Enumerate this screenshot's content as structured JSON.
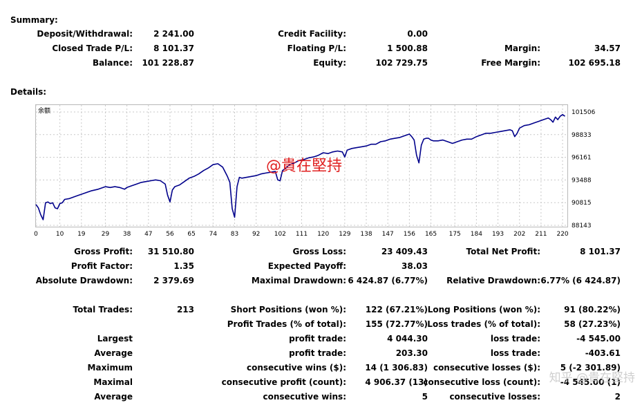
{
  "summary": {
    "title": "Summary:",
    "deposit_label": "Deposit/Withdrawal:",
    "deposit_value": "2 241.00",
    "credit_label": "Credit Facility:",
    "credit_value": "0.00",
    "closed_pl_label": "Closed Trade P/L:",
    "closed_pl_value": "8 101.37",
    "floating_label": "Floating P/L:",
    "floating_value": "1 500.88",
    "margin_label": "Margin:",
    "margin_value": "34.57",
    "balance_label": "Balance:",
    "balance_value": "101 228.87",
    "equity_label": "Equity:",
    "equity_value": "102 729.75",
    "free_margin_label": "Free Margin:",
    "free_margin_value": "102 695.18"
  },
  "details": {
    "title": "Details:"
  },
  "chart_data": {
    "type": "line",
    "title": "余额",
    "xlabel": "",
    "ylabel": "",
    "x_ticks": [
      "0",
      "10",
      "19",
      "29",
      "38",
      "47",
      "56",
      "65",
      "74",
      "83",
      "92",
      "102",
      "111",
      "120",
      "129",
      "138",
      "147",
      "156",
      "165",
      "175",
      "184",
      "193",
      "202",
      "211",
      "220"
    ],
    "y_ticks": [
      "101506",
      "98833",
      "96161",
      "93488",
      "90815",
      "88143"
    ],
    "ylim": [
      88143,
      101506
    ],
    "xlim": [
      0,
      222
    ],
    "grid": true,
    "series": [
      {
        "name": "",
        "color": "#00008b",
        "x": [
          0,
          1,
          2,
          3,
          4,
          5,
          6,
          7,
          8,
          9,
          10,
          11,
          12,
          14,
          16,
          18,
          20,
          23,
          26,
          29,
          31,
          33,
          35,
          37,
          38,
          40,
          42,
          44,
          46,
          48,
          50,
          52,
          54,
          55,
          56,
          57,
          58,
          60,
          62,
          64,
          66,
          68,
          70,
          72,
          74,
          76,
          78,
          80,
          81,
          82,
          83,
          84,
          85,
          86,
          88,
          90,
          92,
          94,
          96,
          98,
          100,
          101,
          102,
          103,
          104,
          106,
          108,
          110,
          112,
          114,
          116,
          118,
          120,
          122,
          124,
          126,
          128,
          129,
          130,
          132,
          134,
          136,
          138,
          140,
          142,
          144,
          146,
          148,
          150,
          152,
          154,
          156,
          157,
          158,
          159,
          160,
          161,
          162,
          163,
          164,
          165,
          166,
          168,
          170,
          172,
          174,
          176,
          178,
          180,
          182,
          184,
          186,
          188,
          190,
          192,
          194,
          196,
          198,
          199,
          200,
          201,
          202,
          204,
          206,
          208,
          210,
          212,
          214,
          215,
          216,
          217,
          218,
          219,
          220,
          221
        ],
        "values": [
          90600,
          90200,
          89400,
          88800,
          90800,
          90900,
          90700,
          90800,
          90200,
          90100,
          90700,
          90800,
          91200,
          91300,
          91500,
          91700,
          91900,
          92200,
          92400,
          92700,
          92600,
          92700,
          92600,
          92400,
          92600,
          92800,
          93000,
          93200,
          93300,
          93400,
          93500,
          93400,
          93000,
          91700,
          90900,
          92300,
          92700,
          92900,
          93300,
          93700,
          93900,
          94200,
          94600,
          94900,
          95300,
          95400,
          95000,
          93900,
          93200,
          90100,
          89100,
          92700,
          93800,
          93700,
          93800,
          93900,
          94000,
          94200,
          94300,
          94400,
          94500,
          93500,
          93400,
          94600,
          94800,
          95300,
          95500,
          95800,
          95900,
          96100,
          96200,
          96400,
          96700,
          96600,
          96800,
          96900,
          96800,
          96200,
          97000,
          97200,
          97300,
          97400,
          97500,
          97700,
          97700,
          98000,
          98100,
          98300,
          98400,
          98500,
          98700,
          98900,
          98600,
          98200,
          96400,
          95500,
          97600,
          98300,
          98400,
          98400,
          98200,
          98100,
          98100,
          98200,
          98000,
          97800,
          98000,
          98200,
          98300,
          98300,
          98600,
          98800,
          99000,
          99000,
          99100,
          99200,
          99300,
          99400,
          99300,
          98600,
          99000,
          99600,
          99900,
          100000,
          100200,
          100400,
          100600,
          100800,
          100600,
          100300,
          100900,
          100600,
          101000,
          101200,
          101000
        ]
      }
    ]
  },
  "stats": {
    "gross_profit_label": "Gross Profit:",
    "gross_profit_value": "31 510.80",
    "gross_loss_label": "Gross Loss:",
    "gross_loss_value": "23 409.43",
    "total_net_profit_label": "Total Net Profit:",
    "total_net_profit_value": "8 101.37",
    "profit_factor_label": "Profit Factor:",
    "profit_factor_value": "1.35",
    "expected_payoff_label": "Expected Payoff:",
    "expected_payoff_value": "38.03",
    "abs_drawdown_label": "Absolute Drawdown:",
    "abs_drawdown_value": "2 379.69",
    "max_drawdown_label": "Maximal Drawdown:",
    "max_drawdown_value": "6 424.87 (6.77%)",
    "rel_drawdown_label": "Relative Drawdown:",
    "rel_drawdown_value": "6.77% (6 424.87)",
    "total_trades_label": "Total Trades:",
    "total_trades_value": "213",
    "short_label": "Short Positions (won %):",
    "short_value": "122 (67.21%)",
    "long_label": "Long Positions (won %):",
    "long_value": "91 (80.22%)",
    "profit_trades_label": "Profit Trades (% of total):",
    "profit_trades_value": "155 (72.77%)",
    "loss_trades_label": "Loss trades (% of total):",
    "loss_trades_value": "58 (27.23%)",
    "largest_label": "Largest",
    "largest_profit_label": "profit trade:",
    "largest_profit_value": "4 044.30",
    "largest_loss_label": "loss trade:",
    "largest_loss_value": "-4 545.00",
    "average_label": "Average",
    "average_profit_label": "profit trade:",
    "average_profit_value": "203.30",
    "average_loss_label": "loss trade:",
    "average_loss_value": "-403.61",
    "maximum_label": "Maximum",
    "max_cons_wins_label": "consecutive wins ($):",
    "max_cons_wins_value": "14 (1 306.83)",
    "max_cons_losses_label": "consecutive losses ($):",
    "max_cons_losses_value": "5 (-2 301.89)",
    "maximal_label": "Maximal",
    "maximal_profit_label": "consecutive profit (count):",
    "maximal_profit_value": "4 906.37 (13)",
    "maximal_loss_label": "consecutive loss (count):",
    "maximal_loss_value": "-4 545.00 (1)",
    "avg2_label": "Average",
    "avg_cons_wins_label": "consecutive wins:",
    "avg_cons_wins_value": "5",
    "avg_cons_losses_label": "consecutive losses:",
    "avg_cons_losses_value": "2"
  },
  "watermark": {
    "center_text": "@貴在堅持",
    "corner_text": "知乎 @貴在堅持"
  }
}
